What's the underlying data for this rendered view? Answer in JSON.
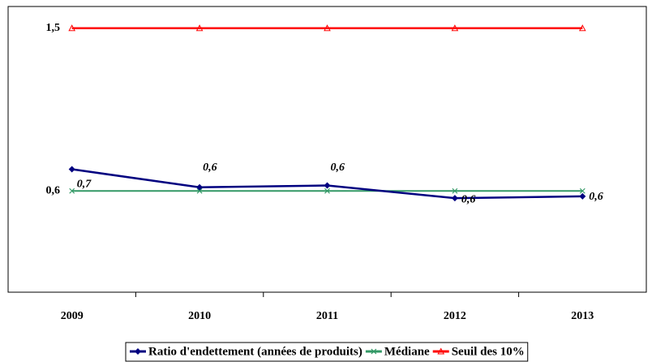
{
  "chart_data": {
    "type": "line",
    "categories": [
      "2009",
      "2010",
      "2011",
      "2012",
      "2013"
    ],
    "series": [
      {
        "name": "Ratio d'endettement (années de produits)",
        "color": "#000080",
        "marker": "diamond",
        "values": [
          0.72,
          0.62,
          0.63,
          0.56,
          0.57
        ],
        "value_labels": [
          "0,7",
          "0,6",
          "0,6",
          "0,6",
          "0,6"
        ]
      },
      {
        "name": "Médiane",
        "color": "#339966",
        "marker": "x",
        "values": [
          0.6,
          0.6,
          0.6,
          0.6,
          0.6
        ]
      },
      {
        "name": "Seuil des 10%",
        "color": "#ff0000",
        "marker": "triangle",
        "values": [
          1.5,
          1.5,
          1.5,
          1.5,
          1.5
        ]
      }
    ],
    "ylim": [
      0.04,
      1.62
    ],
    "yticks": [
      {
        "value": 0.6,
        "label": "0,6"
      },
      {
        "value": 1.5,
        "label": "1,5"
      }
    ],
    "grid": false,
    "legend": "bottom"
  }
}
